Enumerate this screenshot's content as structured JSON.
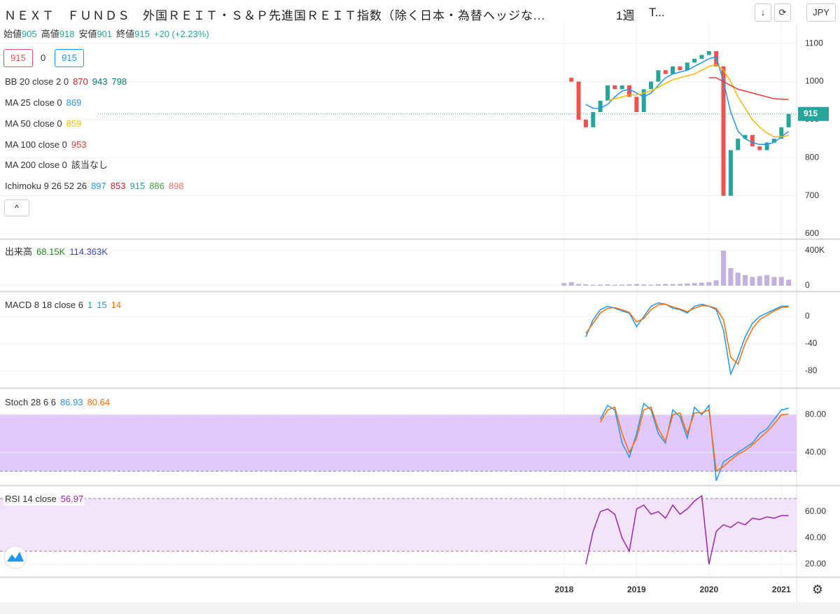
{
  "header": {
    "title": "ＮＥＸＴ　ＦＵＮＤＳ　外国ＲＥＩＴ・Ｓ＆Ｐ先進国ＲＥＩＴ指数（除く日本・為替ヘッジな...",
    "interval": "1週",
    "chart_type": "T...",
    "currency": "JPY"
  },
  "ohlc": {
    "labels": [
      "始値",
      "高値",
      "安値",
      "終値"
    ],
    "values": [
      905,
      918,
      901,
      915
    ],
    "change": "+20 (+2.23%)"
  },
  "order": {
    "sell": 915,
    "qty": 0,
    "buy": 915
  },
  "chart": {
    "xlim": [
      2010.21,
      2021.21
    ],
    "xticks": [
      2018,
      2019,
      2020,
      2021
    ],
    "x": [
      2018.0,
      2018.1,
      2018.2,
      2018.3,
      2018.4,
      2018.5,
      2018.6,
      2018.7,
      2018.8,
      2018.9,
      2019.0,
      2019.1,
      2019.2,
      2019.3,
      2019.4,
      2019.5,
      2019.6,
      2019.7,
      2019.8,
      2019.9,
      2020.0,
      2020.1,
      2020.2,
      2020.3,
      2020.4,
      2020.5,
      2020.6,
      2020.7,
      2020.8,
      2020.9,
      2021.0,
      2021.1
    ],
    "panels": [
      {
        "ylim": [
          589,
          1150
        ],
        "yticks": [
          600,
          700,
          800,
          900,
          1000,
          1100
        ],
        "legend_rows": [
          {
            "label": "BB 20 close 2 0",
            "values": [
              870,
              943,
              798
            ],
            "colors": [
              "#c62828",
              "#00796b",
              "#00796b"
            ]
          },
          {
            "label": "MA 25 close 0",
            "values": [
              869
            ],
            "colors": [
              "#2196f3"
            ]
          },
          {
            "label": "MA 50 close 0",
            "values": [
              859
            ],
            "colors": [
              "#f5b800"
            ]
          },
          {
            "label": "MA 100 close 0",
            "values": [
              953
            ],
            "colors": [
              "#e53935"
            ]
          },
          {
            "label": "MA 200 close 0",
            "values": [
              "該当なし"
            ],
            "colors": [
              "#333333"
            ]
          },
          {
            "label": "Ichimoku 9 26 52 26",
            "values": [
              897,
              853,
              915,
              886,
              898
            ],
            "colors": [
              "#2196f3",
              "#c62828",
              "#26a69a",
              "#43a047",
              "#e57373"
            ]
          }
        ],
        "series": [
          {
            "style": "candle",
            "colors": [
              "#26a69a",
              "#ef5350"
            ],
            "values": [
              1010,
              1000,
              900,
              880,
              920,
              950,
              990,
              980,
              990,
              960,
              920,
              980,
              1000,
              1030,
              1020,
              1040,
              1030,
              1050,
              1060,
              1070,
              1080,
              1040,
              700,
              820,
              850,
              860,
              830,
              820,
              840,
              850,
              880,
              915
            ]
          },
          {
            "style": "line",
            "color": "#2196f3",
            "values": [
              null,
              null,
              null,
              940,
              930,
              930,
              940,
              960,
              975,
              980,
              970,
              960,
              970,
              990,
              1010,
              1020,
              1025,
              1030,
              1040,
              1050,
              1060,
              1065,
              1000,
              920,
              870,
              850,
              840,
              835,
              835,
              840,
              855,
              869
            ]
          },
          {
            "style": "line",
            "color": "#f5b800",
            "values": [
              null,
              null,
              null,
              null,
              null,
              null,
              950,
              955,
              960,
              965,
              965,
              970,
              975,
              985,
              995,
              1005,
              1010,
              1015,
              1020,
              1030,
              1040,
              1045,
              1030,
              1000,
              960,
              930,
              900,
              880,
              865,
              855,
              855,
              859
            ]
          },
          {
            "style": "line",
            "color": "#e53935",
            "values": [
              null,
              null,
              null,
              null,
              null,
              null,
              null,
              null,
              null,
              null,
              null,
              null,
              null,
              null,
              null,
              null,
              null,
              null,
              null,
              null,
              1010,
              1010,
              1000,
              990,
              980,
              975,
              970,
              965,
              960,
              955,
              954,
              953
            ]
          }
        ]
      },
      {
        "ylim": [
          -56000,
          520000
        ],
        "yticks": [
          0,
          {
            "value": 400000,
            "label": "400K"
          }
        ],
        "legend_rows": [
          {
            "label": "出来高",
            "values": [
              "68.15K",
              "114.363K"
            ],
            "colors": [
              "#1b8a1b",
              "#3f3fd6"
            ]
          }
        ],
        "series": [
          {
            "style": "bar",
            "color": "#b39ddb",
            "values": [
              30000,
              40000,
              20000,
              15000,
              10000,
              12000,
              15000,
              10000,
              12000,
              15000,
              20000,
              15000,
              12000,
              15000,
              20000,
              18000,
              20000,
              25000,
              30000,
              35000,
              40000,
              60000,
              400000,
              200000,
              150000,
              120000,
              100000,
              110000,
              120000,
              100000,
              100000,
              68150
            ]
          }
        ]
      },
      {
        "ylim": [
          -104,
          35
        ],
        "yticks": [
          0,
          -40,
          -80
        ],
        "legend_rows": [
          {
            "label": "MACD 8 18 close 6",
            "values": [
              1,
              15,
              14
            ],
            "colors": [
              "#26a69a",
              "#2196f3",
              "#ff6d00"
            ]
          }
        ],
        "series": [
          {
            "style": "line",
            "color": "#2196f3",
            "values": [
              null,
              null,
              null,
              -30,
              -5,
              10,
              15,
              12,
              8,
              5,
              -15,
              0,
              15,
              20,
              18,
              12,
              10,
              5,
              15,
              18,
              15,
              10,
              -20,
              -85,
              -60,
              -30,
              -10,
              0,
              5,
              10,
              15,
              15
            ]
          },
          {
            "style": "line",
            "color": "#ff6d00",
            "values": [
              null,
              null,
              null,
              -25,
              -10,
              5,
              12,
              13,
              10,
              6,
              -8,
              -3,
              10,
              17,
              18,
              14,
              11,
              7,
              12,
              16,
              15,
              12,
              -5,
              -60,
              -70,
              -40,
              -18,
              -5,
              2,
              8,
              13,
              14
            ]
          }
        ]
      },
      {
        "ylim": [
          6,
          107
        ],
        "yticks": [
          {
            "value": 80,
            "label": "80.00"
          },
          {
            "value": 40,
            "label": "40.00"
          }
        ],
        "band": [
          20,
          80
        ],
        "band_color": "#e1c8f8",
        "legend_rows": [
          {
            "label": "Stoch 28 6 6",
            "values": [
              86.93,
              80.64
            ],
            "colors": [
              "#2196f3",
              "#ff6d00"
            ]
          }
        ],
        "series": [
          {
            "style": "line",
            "color": "#2196f3",
            "values": [
              null,
              null,
              null,
              null,
              null,
              75,
              90,
              85,
              50,
              35,
              60,
              92,
              85,
              60,
              50,
              85,
              78,
              55,
              88,
              80,
              90,
              10,
              30,
              35,
              40,
              45,
              50,
              60,
              65,
              75,
              85,
              86.93
            ]
          },
          {
            "style": "line",
            "color": "#ff6d00",
            "values": [
              null,
              null,
              null,
              null,
              null,
              72,
              85,
              88,
              60,
              40,
              55,
              85,
              88,
              65,
              52,
              80,
              82,
              60,
              82,
              82,
              85,
              20,
              25,
              32,
              38,
              42,
              48,
              55,
              62,
              70,
              80,
              80.64
            ]
          }
        ]
      },
      {
        "ylim": [
          11,
          79
        ],
        "yticks": [
          {
            "value": 60,
            "label": "60.00"
          },
          {
            "value": 40,
            "label": "40.00"
          },
          {
            "value": 20,
            "label": "20.00"
          }
        ],
        "band": [
          30,
          70
        ],
        "band_color": "#f3e3fb",
        "legend_rows": [
          {
            "label": "RSI 14 close",
            "values": [
              56.97
            ],
            "colors": [
              "#9c27b0"
            ]
          }
        ],
        "series": [
          {
            "style": "line",
            "color": "#9c27b0",
            "values": [
              null,
              null,
              null,
              20,
              45,
              60,
              62,
              58,
              40,
              30,
              62,
              65,
              58,
              60,
              55,
              65,
              58,
              62,
              68,
              72,
              20,
              45,
              50,
              48,
              52,
              50,
              55,
              54,
              56,
              55,
              57,
              56.97
            ]
          }
        ]
      }
    ]
  }
}
